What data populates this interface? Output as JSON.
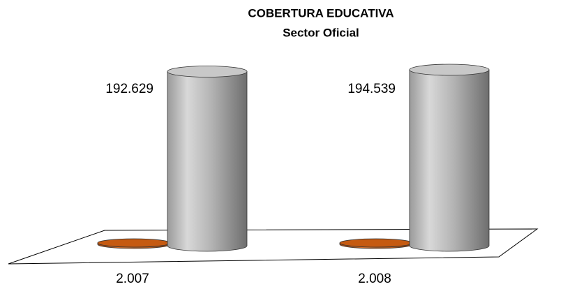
{
  "chart_data": {
    "type": "bar3d",
    "title": "COBERTURA EDUCATIVA",
    "subtitle": "Sector Oficial",
    "categories": [
      "2.007",
      "2.008"
    ],
    "series": [
      {
        "color": "#c55a11",
        "values": [
          1500,
          1500
        ]
      },
      {
        "color": "#a6a6a6",
        "values": [
          192629,
          194539
        ],
        "value_labels": [
          "192.629",
          "194.539"
        ]
      }
    ]
  }
}
